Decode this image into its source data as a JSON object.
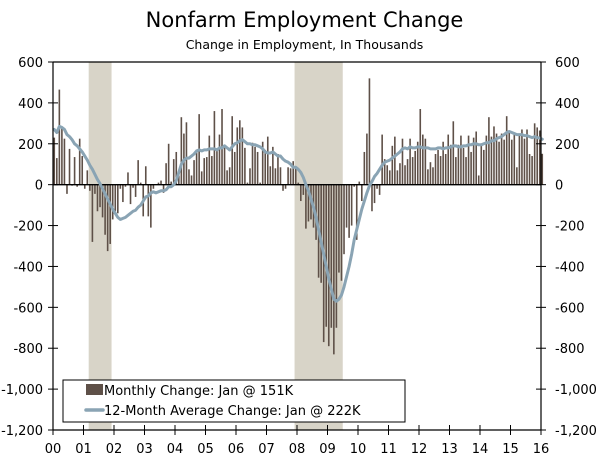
{
  "colors": {
    "bar": "#5e5048",
    "line": "#8aa4b4",
    "recession": "#d8d4c8",
    "axis": "#000000"
  },
  "chart_data": {
    "type": "bar",
    "title": "Nonfarm Employment Change",
    "subtitle": "Change in Employment, In Thousands",
    "xlabel": "",
    "ylabel": "",
    "ylim": [
      -1200,
      600
    ],
    "xlim_years": [
      2000,
      2016
    ],
    "y_ticks": [
      "600",
      "400",
      "200",
      "0",
      "-200",
      "-400",
      "-600",
      "-800",
      "-1,000",
      "-1,200"
    ],
    "y_tick_values": [
      600,
      400,
      200,
      0,
      -200,
      -400,
      -600,
      -800,
      -1000,
      -1200
    ],
    "x_ticks": [
      "00",
      "01",
      "02",
      "03",
      "04",
      "05",
      "06",
      "07",
      "08",
      "09",
      "10",
      "11",
      "12",
      "13",
      "14",
      "15",
      "16"
    ],
    "recessions": [
      {
        "start": 2001.17,
        "end": 2001.92
      },
      {
        "start": 2007.92,
        "end": 2009.5
      }
    ],
    "legend": {
      "position": "bottom-left",
      "items": [
        {
          "label": "Monthly Change: Jan @ 151K",
          "kind": "bar"
        },
        {
          "label": "12-Month Average Change: Jan @ 222K",
          "kind": "line"
        }
      ]
    },
    "start": "2000-01",
    "series": [
      {
        "name": "Monthly Change",
        "kind": "bar",
        "values": [
          230,
          130,
          465,
          280,
          225,
          -45,
          175,
          -5,
          135,
          -10,
          225,
          140,
          -20,
          70,
          -30,
          -280,
          -45,
          -130,
          -110,
          -160,
          -245,
          -325,
          -290,
          -170,
          -130,
          -140,
          -20,
          -85,
          -10,
          60,
          -95,
          -15,
          -60,
          120,
          10,
          -155,
          90,
          -155,
          -210,
          -20,
          0,
          10,
          20,
          -40,
          105,
          200,
          15,
          125,
          160,
          45,
          330,
          250,
          305,
          75,
          45,
          120,
          160,
          345,
          65,
          130,
          135,
          240,
          140,
          360,
          170,
          245,
          370,
          195,
          70,
          85,
          335,
          160,
          280,
          315,
          280,
          180,
          10,
          80,
          205,
          185,
          160,
          10,
          210,
          170,
          235,
          90,
          185,
          80,
          150,
          85,
          -30,
          -20,
          85,
          80,
          115,
          90,
          10,
          -80,
          -50,
          -215,
          -180,
          -170,
          -210,
          -270,
          -455,
          -480,
          -770,
          -695,
          -790,
          -700,
          -830,
          -700,
          -430,
          -470,
          -340,
          -210,
          -260,
          -200,
          -10,
          -270,
          15,
          -80,
          160,
          250,
          520,
          -130,
          -90,
          -20,
          -50,
          245,
          125,
          95,
          70,
          190,
          235,
          70,
          105,
          225,
          95,
          125,
          225,
          135,
          165,
          210,
          370,
          245,
          225,
          75,
          110,
          85,
          150,
          170,
          140,
          210,
          150,
          245,
          195,
          310,
          135,
          195,
          240,
          180,
          135,
          240,
          160,
          230,
          260,
          45,
          190,
          170,
          240,
          330,
          235,
          285,
          250,
          210,
          250,
          220,
          335,
          260,
          220,
          255,
          85,
          250,
          270,
          225,
          270,
          150,
          140,
          300,
          280,
          265,
          151
        ]
      },
      {
        "name": "12-Month Average Change",
        "kind": "line",
        "values": [
          270,
          255,
          285,
          280,
          270,
          245,
          235,
          220,
          200,
          190,
          175,
          160,
          140,
          120,
          95,
          75,
          50,
          25,
          5,
          -20,
          -45,
          -70,
          -95,
          -120,
          -140,
          -160,
          -170,
          -165,
          -160,
          -150,
          -140,
          -130,
          -125,
          -110,
          -100,
          -80,
          -60,
          -55,
          -40,
          -35,
          -40,
          -35,
          -30,
          -30,
          -25,
          -10,
          -10,
          0,
          20,
          60,
          100,
          120,
          130,
          130,
          140,
          150,
          165,
          170,
          165,
          170,
          170,
          175,
          175,
          175,
          170,
          180,
          180,
          190,
          180,
          170,
          185,
          200,
          205,
          215,
          220,
          210,
          200,
          200,
          195,
          195,
          190,
          185,
          175,
          160,
          155,
          155,
          160,
          150,
          140,
          140,
          125,
          115,
          110,
          100,
          85,
          85,
          75,
          60,
          35,
          0,
          -30,
          -70,
          -110,
          -160,
          -220,
          -280,
          -340,
          -400,
          -460,
          -510,
          -560,
          -570,
          -560,
          -540,
          -500,
          -450,
          -400,
          -340,
          -270,
          -220,
          -170,
          -120,
          -80,
          -40,
          -5,
          15,
          40,
          55,
          75,
          95,
          110,
          115,
          120,
          130,
          140,
          150,
          160,
          175,
          180,
          175,
          185,
          180,
          180,
          185,
          185,
          180,
          180,
          180,
          175,
          175,
          175,
          180,
          180,
          175,
          180,
          180,
          185,
          190,
          190,
          185,
          185,
          190,
          190,
          195,
          195,
          200,
          200,
          195,
          195,
          200,
          205,
          205,
          215,
          215,
          225,
          230,
          235,
          245,
          255,
          260,
          255,
          250,
          245,
          245,
          245,
          240,
          240,
          235,
          230,
          235,
          230,
          228,
          222
        ]
      }
    ]
  }
}
